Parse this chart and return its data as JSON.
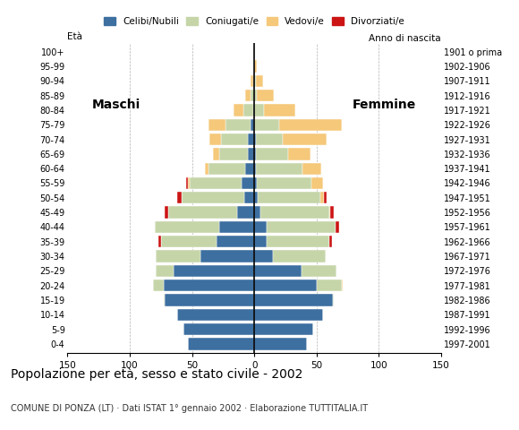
{
  "title": "Popolazione per età, sesso e stato civile - 2002",
  "subtitle": "COMUNE DI PONZA (LT) · Dati ISTAT 1° gennaio 2002 · Elaborazione TUTTITALIA.IT",
  "age_groups": [
    "0-4",
    "5-9",
    "10-14",
    "15-19",
    "20-24",
    "25-29",
    "30-34",
    "35-39",
    "40-44",
    "45-49",
    "50-54",
    "55-59",
    "60-64",
    "65-69",
    "70-74",
    "75-79",
    "80-84",
    "85-89",
    "90-94",
    "95-99",
    "100+"
  ],
  "birth_years": [
    "1997-2001",
    "1992-1996",
    "1987-1991",
    "1982-1986",
    "1977-1981",
    "1972-1976",
    "1967-1971",
    "1962-1966",
    "1957-1961",
    "1952-1956",
    "1947-1951",
    "1942-1946",
    "1937-1941",
    "1932-1936",
    "1927-1931",
    "1922-1926",
    "1917-1921",
    "1912-1916",
    "1907-1911",
    "1902-1906",
    "1901 o prima"
  ],
  "colors": {
    "celibe": "#3d6fa0",
    "coniugato": "#c5d5a8",
    "vedovo": "#f5c87a",
    "divorziato": "#cc1414"
  },
  "legend_labels": [
    "Celibi/Nubili",
    "Coniugati/e",
    "Vedovi/e",
    "Divorziati/e"
  ],
  "xlim": 150,
  "males": {
    "celibe": [
      53,
      57,
      62,
      72,
      73,
      65,
      43,
      30,
      28,
      14,
      8,
      10,
      7,
      5,
      5,
      3,
      1,
      0,
      0,
      0,
      0
    ],
    "coniugato": [
      0,
      0,
      0,
      1,
      8,
      14,
      36,
      45,
      52,
      55,
      50,
      42,
      30,
      23,
      22,
      20,
      8,
      3,
      1,
      0,
      0
    ],
    "vedovo": [
      0,
      0,
      0,
      0,
      0,
      0,
      0,
      0,
      0,
      0,
      0,
      1,
      3,
      5,
      9,
      14,
      8,
      4,
      2,
      0,
      0
    ],
    "divorziato": [
      0,
      0,
      0,
      0,
      0,
      0,
      0,
      2,
      0,
      3,
      4,
      2,
      0,
      0,
      0,
      0,
      0,
      0,
      0,
      0,
      0
    ]
  },
  "females": {
    "celibe": [
      42,
      47,
      55,
      63,
      50,
      38,
      15,
      10,
      10,
      5,
      3,
      2,
      1,
      1,
      1,
      0,
      0,
      0,
      0,
      0,
      0
    ],
    "coniugato": [
      0,
      0,
      0,
      1,
      20,
      28,
      42,
      50,
      55,
      55,
      50,
      44,
      38,
      26,
      22,
      20,
      8,
      2,
      1,
      0,
      0
    ],
    "vedovo": [
      0,
      0,
      0,
      0,
      1,
      0,
      0,
      0,
      0,
      1,
      3,
      9,
      15,
      18,
      35,
      50,
      25,
      14,
      6,
      2,
      0
    ],
    "divorziato": [
      0,
      0,
      0,
      0,
      0,
      0,
      0,
      2,
      3,
      3,
      2,
      0,
      0,
      0,
      0,
      0,
      0,
      0,
      0,
      0,
      0
    ]
  }
}
